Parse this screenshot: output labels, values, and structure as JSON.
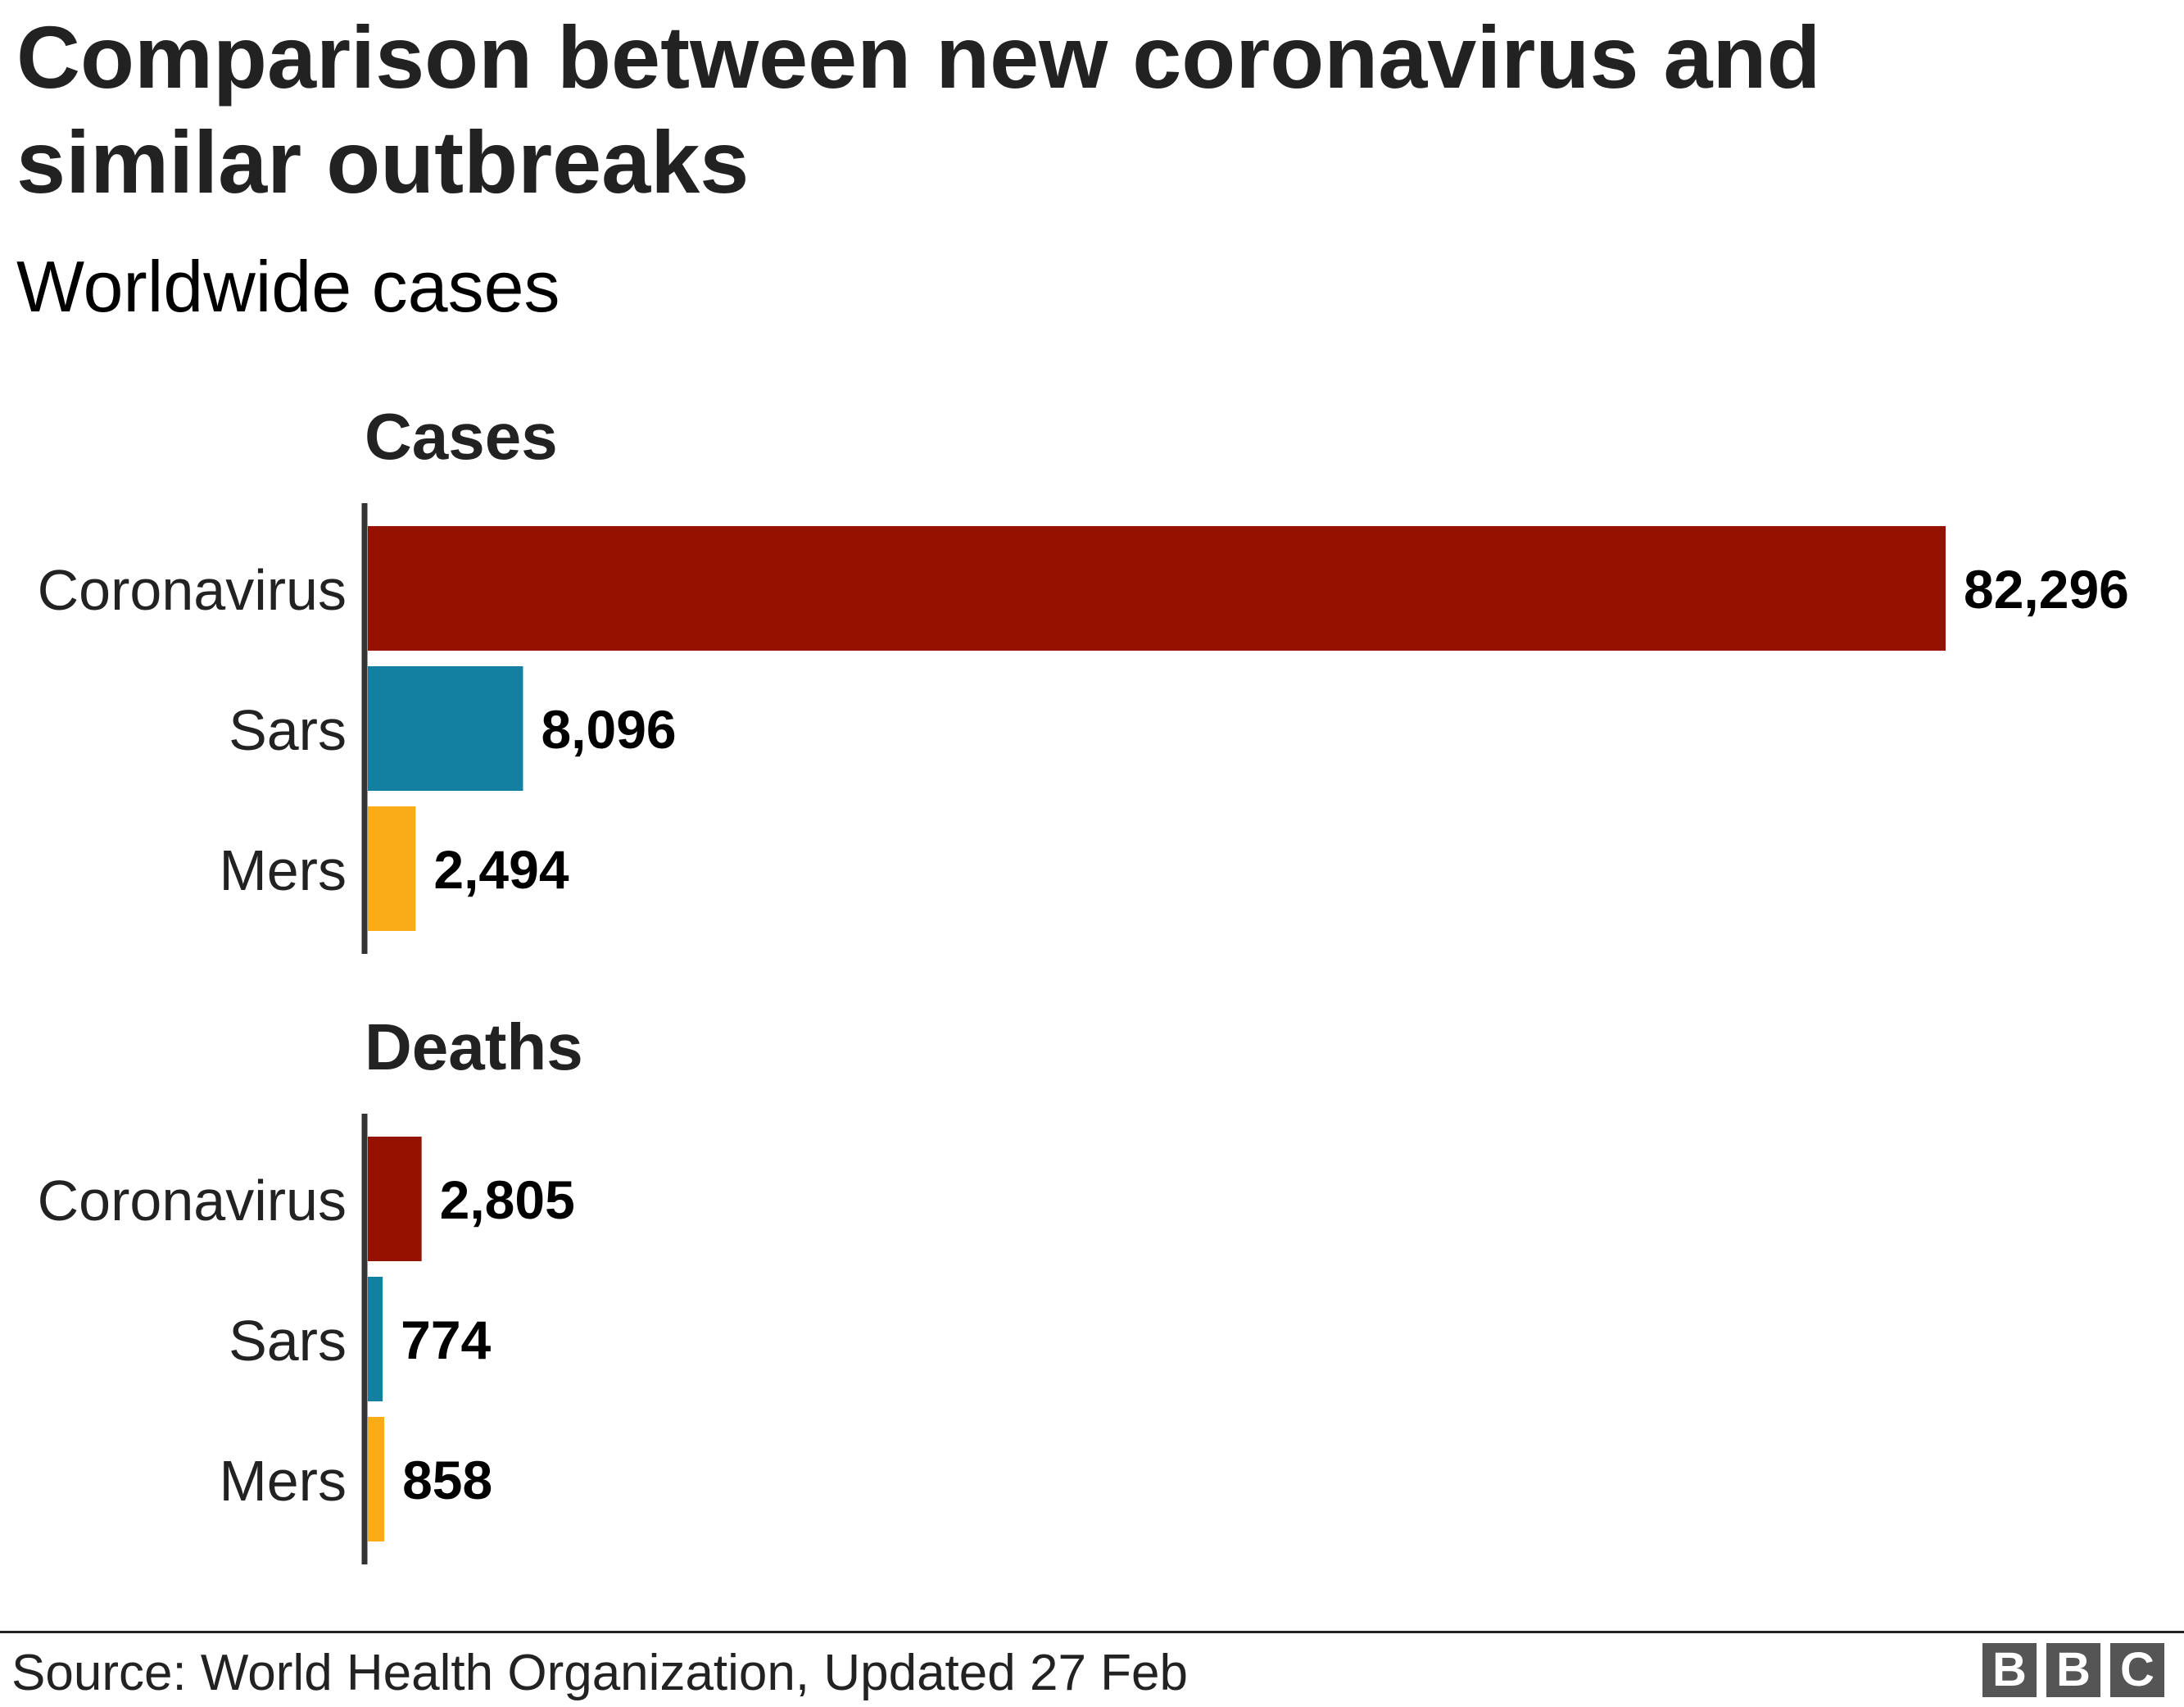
{
  "header": {
    "title": "Comparison between new coronavirus and similar outbreaks",
    "subtitle": "Worldwide cases"
  },
  "chart_data": [
    {
      "type": "bar",
      "orientation": "horizontal",
      "title": "Cases",
      "categories": [
        "Coronavirus",
        "Sars",
        "Mers"
      ],
      "values": [
        82296,
        8096,
        2494
      ],
      "value_labels": [
        "82,296",
        "8,096",
        "2,494"
      ],
      "colors": [
        "#961200",
        "#1380A1",
        "#FAAB18"
      ],
      "xlim": [
        0,
        82296
      ]
    },
    {
      "type": "bar",
      "orientation": "horizontal",
      "title": "Deaths",
      "categories": [
        "Coronavirus",
        "Sars",
        "Mers"
      ],
      "values": [
        2805,
        774,
        858
      ],
      "value_labels": [
        "2,805",
        "774",
        "858"
      ],
      "colors": [
        "#961200",
        "#1380A1",
        "#FAAB18"
      ],
      "xlim": [
        0,
        82296
      ]
    }
  ],
  "footer": {
    "source": "Source: World Health Organization, Updated 27 Feb",
    "logo_letters": [
      "B",
      "B",
      "C"
    ]
  }
}
